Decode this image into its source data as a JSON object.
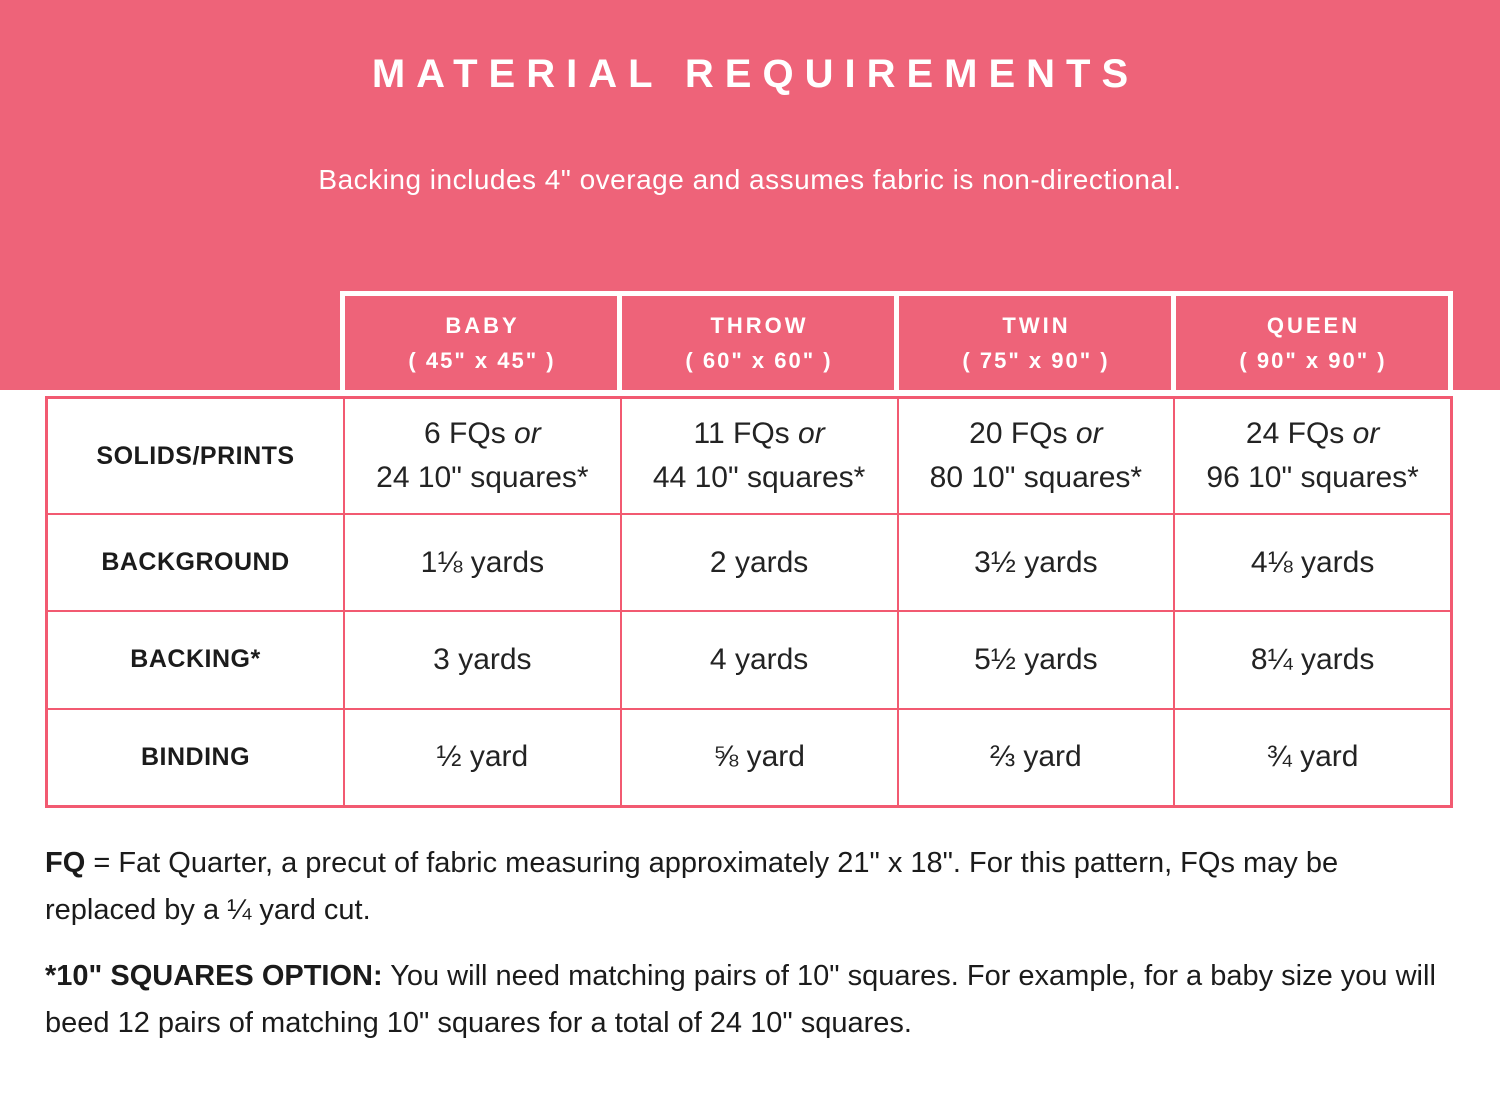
{
  "colors": {
    "hero_pink": "#ee6379",
    "table_border_pink": "#f25a71",
    "text_dark": "#1b1b1b",
    "white": "#ffffff"
  },
  "hero": {
    "title": "MATERIAL REQUIREMENTS",
    "subtitle": "Backing includes 4\" overage and assumes fabric is non-directional."
  },
  "table": {
    "columns": [
      {
        "name": "BABY",
        "size": "( 45\" x 45\" )"
      },
      {
        "name": "THROW",
        "size": "( 60\" x 60\" )"
      },
      {
        "name": "TWIN",
        "size": "( 75\" x 90\" )"
      },
      {
        "name": "QUEEN",
        "size": "( 90\" x 90\" )"
      }
    ],
    "rows": [
      {
        "label": "SOLIDS/PRINTS",
        "cells": [
          {
            "fq": "6 FQs",
            "or": "or",
            "squares": "24 10\" squares*"
          },
          {
            "fq": "11 FQs",
            "or": "or",
            "squares": "44 10\" squares*"
          },
          {
            "fq": "20 FQs",
            "or": "or",
            "squares": "80 10\" squares*"
          },
          {
            "fq": "24 FQs",
            "or": "or",
            "squares": "96 10\" squares*"
          }
        ]
      },
      {
        "label": "BACKGROUND",
        "values": [
          "1⅛ yards",
          "2 yards",
          "3½ yards",
          "4⅛ yards"
        ]
      },
      {
        "label": "BACKING*",
        "values": [
          "3 yards",
          "4 yards",
          "5½ yards",
          "8¼ yards"
        ]
      },
      {
        "label": "BINDING",
        "values": [
          "½ yard",
          "⅝ yard",
          "⅔ yard",
          "¾ yard"
        ]
      }
    ]
  },
  "notes": [
    {
      "bold": "FQ",
      "text": " = Fat Quarter, a precut of fabric measuring approximately 21\" x 18\". For this pattern, FQs may be replaced by a ¼ yard cut."
    },
    {
      "bold": "*10\" SQUARES OPTION:",
      "text": " You will need matching pairs of 10\" squares. For example, for a baby size you will beed 12 pairs of matching 10\" squares for a total of 24 10\" squares."
    }
  ]
}
